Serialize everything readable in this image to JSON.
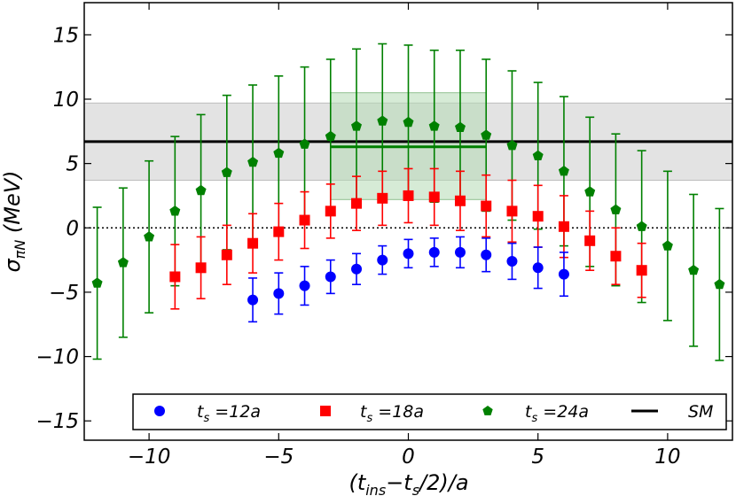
{
  "chart_data": {
    "type": "scatter",
    "subtype": "errorbar",
    "xlabel_main": "(t",
    "xlabel_sub1": "ins",
    "xlabel_mid": "−t",
    "xlabel_sub2": "s",
    "xlabel_end": "/2)/a",
    "ylabel_main": "σ",
    "ylabel_sub": "πN",
    "ylabel_unit": " (MeV)",
    "xlim": [
      -12.5,
      12.5
    ],
    "ylim": [
      -16.5,
      17.5
    ],
    "x_ticks": [
      -10,
      -5,
      0,
      5,
      10
    ],
    "x_tick_labels": [
      "−10",
      "−5",
      "0",
      "5",
      "10"
    ],
    "y_ticks": [
      -15,
      -10,
      -5,
      0,
      5,
      10,
      15
    ],
    "y_tick_labels": [
      "−15",
      "−10",
      "−5",
      "0",
      "5",
      "10",
      "15"
    ],
    "legend_position": "bottom",
    "series": [
      {
        "name": "t_s =12a",
        "legend_main": "t",
        "legend_sub": "s",
        "legend_rest": " =12a",
        "color": "#0000ff",
        "marker": "circle",
        "x": [
          -6,
          -5,
          -4,
          -3,
          -2,
          -1,
          0,
          1,
          2,
          3,
          4,
          5,
          6
        ],
        "y": [
          -5.6,
          -5.1,
          -4.5,
          -3.8,
          -3.2,
          -2.5,
          -2.0,
          -1.9,
          -1.9,
          -2.1,
          -2.6,
          -3.1,
          -3.6
        ],
        "err": [
          1.7,
          1.6,
          1.5,
          1.3,
          1.2,
          1.1,
          1.1,
          1.1,
          1.2,
          1.3,
          1.4,
          1.6,
          1.7
        ]
      },
      {
        "name": "t_s =18a",
        "legend_main": "t",
        "legend_sub": "s",
        "legend_rest": " =18a",
        "color": "#ff0000",
        "marker": "square",
        "x": [
          -9,
          -8,
          -7,
          -6,
          -5,
          -4,
          -3,
          -2,
          -1,
          0,
          1,
          2,
          3,
          4,
          5,
          6,
          7,
          8,
          9
        ],
        "y": [
          -3.8,
          -3.1,
          -2.1,
          -1.2,
          -0.3,
          0.6,
          1.3,
          1.9,
          2.3,
          2.5,
          2.4,
          2.1,
          1.7,
          1.3,
          0.9,
          0.1,
          -1.0,
          -2.2,
          -3.3
        ],
        "err": [
          2.5,
          2.4,
          2.3,
          2.3,
          2.2,
          2.2,
          2.1,
          2.1,
          2.1,
          2.1,
          2.2,
          2.3,
          2.4,
          2.4,
          2.4,
          2.4,
          2.3,
          2.2,
          2.1
        ]
      },
      {
        "name": "t_s =24a",
        "legend_main": "t",
        "legend_sub": "s",
        "legend_rest": " =24a",
        "color": "#008000",
        "marker": "pentagon",
        "x": [
          -12,
          -11,
          -10,
          -9,
          -8,
          -7,
          -6,
          -5,
          -4,
          -3,
          -2,
          -1,
          0,
          1,
          2,
          3,
          4,
          5,
          6,
          7,
          8,
          9,
          10,
          11,
          12
        ],
        "y": [
          -4.3,
          -2.7,
          -0.7,
          1.3,
          2.9,
          4.3,
          5.1,
          5.8,
          6.5,
          7.1,
          7.9,
          8.3,
          8.2,
          7.9,
          7.8,
          7.2,
          6.4,
          5.6,
          4.4,
          2.8,
          1.4,
          0.1,
          -1.4,
          -3.3,
          -4.4
        ],
        "err": [
          5.9,
          5.8,
          5.9,
          5.8,
          5.9,
          6.0,
          6.0,
          6.0,
          6.0,
          6.0,
          6.0,
          6.0,
          6.0,
          5.9,
          6.0,
          5.9,
          5.8,
          5.7,
          5.8,
          5.8,
          5.9,
          5.9,
          5.8,
          5.9,
          5.9
        ]
      }
    ],
    "sm_band": {
      "name": "SM",
      "value": 6.7,
      "low": 3.7,
      "high": 9.7,
      "line_color": "#000000",
      "band_color": "#e0e0e0"
    },
    "fit": {
      "x_start": -3,
      "x_end": 3,
      "value": 6.3,
      "low": 2.2,
      "high": 10.5,
      "line_color": "#008000",
      "band_color": "#b5dab5"
    },
    "zero_line": 0
  }
}
